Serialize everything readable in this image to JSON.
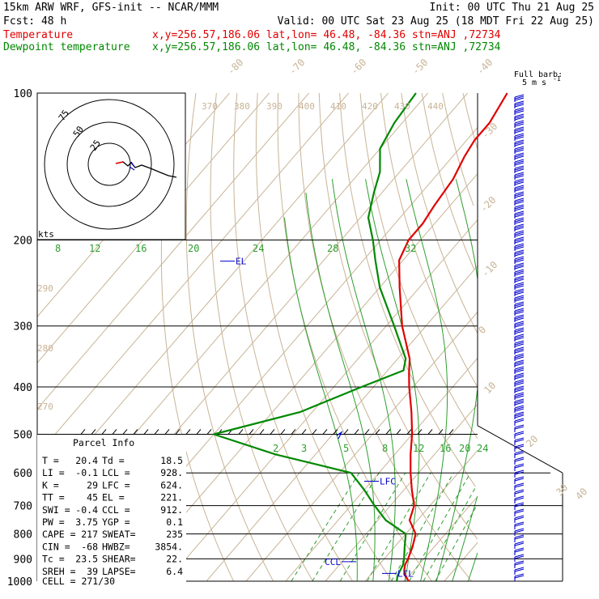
{
  "header": {
    "line1_left": "15km ARW WRF, GFS-init  -- NCAR/MMM",
    "line1_right": "Init: 00 UTC Thu 21 Aug 25",
    "line2_left": "Fcst:   48 h",
    "line2_right": "Valid: 00 UTC Sat 23 Aug 25 (18 MDT Fri 22 Aug 25)",
    "line3_left": "Temperature",
    "line3_mid": "x,y=256.57,186.06   lat,lon= 46.48, -84.36  stn=ANJ ,72734",
    "line4_left": "Dewpoint temperature",
    "line4_mid": "x,y=256.57,186.06   lat,lon= 46.48, -84.36  stn=ANJ ,72734"
  },
  "colors": {
    "temperature": "#e00000",
    "dewpoint": "#008800",
    "moist_adiabat": "#2e9e2e",
    "dry_adiabat_isotherm": "#c8b496",
    "mixing_ratio": "#2e9e2e",
    "annotation": "#0000cc",
    "barb": "#0000cc"
  },
  "barb_legend": {
    "line1": "Full barb:",
    "line2": "5 m s",
    "unit_exp": "-1"
  },
  "hodograph": {
    "unit": "kts",
    "ring_labels": [
      "75",
      "50",
      "25"
    ]
  },
  "parcel_info": {
    "title": "Parcel Info",
    "rows": [
      [
        "T   =",
        "20.4",
        "Td  =",
        "18.5"
      ],
      [
        "LI  =",
        "-0.1",
        "LCL =",
        "928."
      ],
      [
        "K   =",
        "29",
        "LFC =",
        "624."
      ],
      [
        "TT  =",
        "45",
        "EL  =",
        "221."
      ],
      [
        "SWI =",
        "-0.4",
        "CCL =",
        "912."
      ],
      [
        "PW  =",
        "3.75",
        "YGP =",
        "0.1"
      ],
      [
        "CAPE =",
        "217",
        "SWEAT=",
        "235"
      ],
      [
        "CIN =",
        "-68",
        "HWBZ=",
        "3854."
      ],
      [
        "Tc  =",
        "23.5",
        "SHEAR=",
        "22."
      ],
      [
        "SREH =",
        "39",
        "LAPSE=",
        "6.4"
      ]
    ],
    "cell": "CELL = 271/30"
  },
  "chart_data": {
    "type": "line",
    "title": "",
    "y_axis": "pressure (hPa), logarithmic",
    "pressure_levels": [
      100,
      200,
      300,
      400,
      500,
      600,
      700,
      800,
      900,
      1000
    ],
    "ylim": [
      1000,
      100
    ],
    "isotherm_labels_C": [
      "-80",
      "-70",
      "-60",
      "-50",
      "-40",
      "-30",
      "-20",
      "-10",
      "0",
      "10",
      "20",
      "30",
      "40"
    ],
    "dry_adiabat_labels_K": [
      "370",
      "380",
      "390",
      "400",
      "410",
      "420",
      "430",
      "440",
      "290",
      "280",
      "270"
    ],
    "moist_adiabat_labels": [
      "8",
      "12",
      "16",
      "20",
      "24",
      "28",
      "32"
    ],
    "mixing_ratio_labels": [
      "2",
      "3",
      "5",
      "8",
      "12",
      "16",
      "20",
      "24"
    ],
    "annotations": [
      "EL",
      "LFC",
      "CCL",
      "LCL"
    ],
    "series": [
      {
        "name": "Temperature",
        "points_p_T": [
          [
            1000,
            21.0
          ],
          [
            975,
            19.0
          ],
          [
            950,
            17.5
          ],
          [
            925,
            16.5
          ],
          [
            900,
            16.0
          ],
          [
            850,
            14.5
          ],
          [
            800,
            12.5
          ],
          [
            750,
            8.0
          ],
          [
            700,
            6.0
          ],
          [
            650,
            2.0
          ],
          [
            600,
            -2.0
          ],
          [
            550,
            -6.0
          ],
          [
            500,
            -10.0
          ],
          [
            450,
            -15.0
          ],
          [
            400,
            -21.0
          ],
          [
            375,
            -24.0
          ],
          [
            350,
            -27.0
          ],
          [
            300,
            -36.0
          ],
          [
            250,
            -45.0
          ],
          [
            220,
            -51.0
          ],
          [
            200,
            -53.0
          ],
          [
            185,
            -53.0
          ],
          [
            170,
            -54.0
          ],
          [
            150,
            -55.0
          ],
          [
            135,
            -57.0
          ],
          [
            125,
            -58.0
          ],
          [
            115,
            -58.0
          ],
          [
            100,
            -60.0
          ]
        ]
      },
      {
        "name": "Dewpoint temperature",
        "points_p_T": [
          [
            1000,
            18.0
          ],
          [
            975,
            17.0
          ],
          [
            950,
            16.5
          ],
          [
            925,
            16.0
          ],
          [
            900,
            15.0
          ],
          [
            850,
            12.5
          ],
          [
            800,
            10.0
          ],
          [
            750,
            2.0
          ],
          [
            700,
            -4.0
          ],
          [
            650,
            -10.0
          ],
          [
            600,
            -17.0
          ],
          [
            550,
            -40.0
          ],
          [
            500,
            -60.0
          ],
          [
            450,
            -43.0
          ],
          [
            400,
            -33.0
          ],
          [
            370,
            -26.0
          ],
          [
            350,
            -28.0
          ],
          [
            300,
            -38.0
          ],
          [
            250,
            -50.0
          ],
          [
            220,
            -57.0
          ],
          [
            200,
            -62.0
          ],
          [
            180,
            -68.0
          ],
          [
            160,
            -72.0
          ],
          [
            145,
            -75.0
          ],
          [
            130,
            -80.0
          ],
          [
            115,
            -82.0
          ],
          [
            100,
            -83.0
          ]
        ]
      }
    ]
  }
}
